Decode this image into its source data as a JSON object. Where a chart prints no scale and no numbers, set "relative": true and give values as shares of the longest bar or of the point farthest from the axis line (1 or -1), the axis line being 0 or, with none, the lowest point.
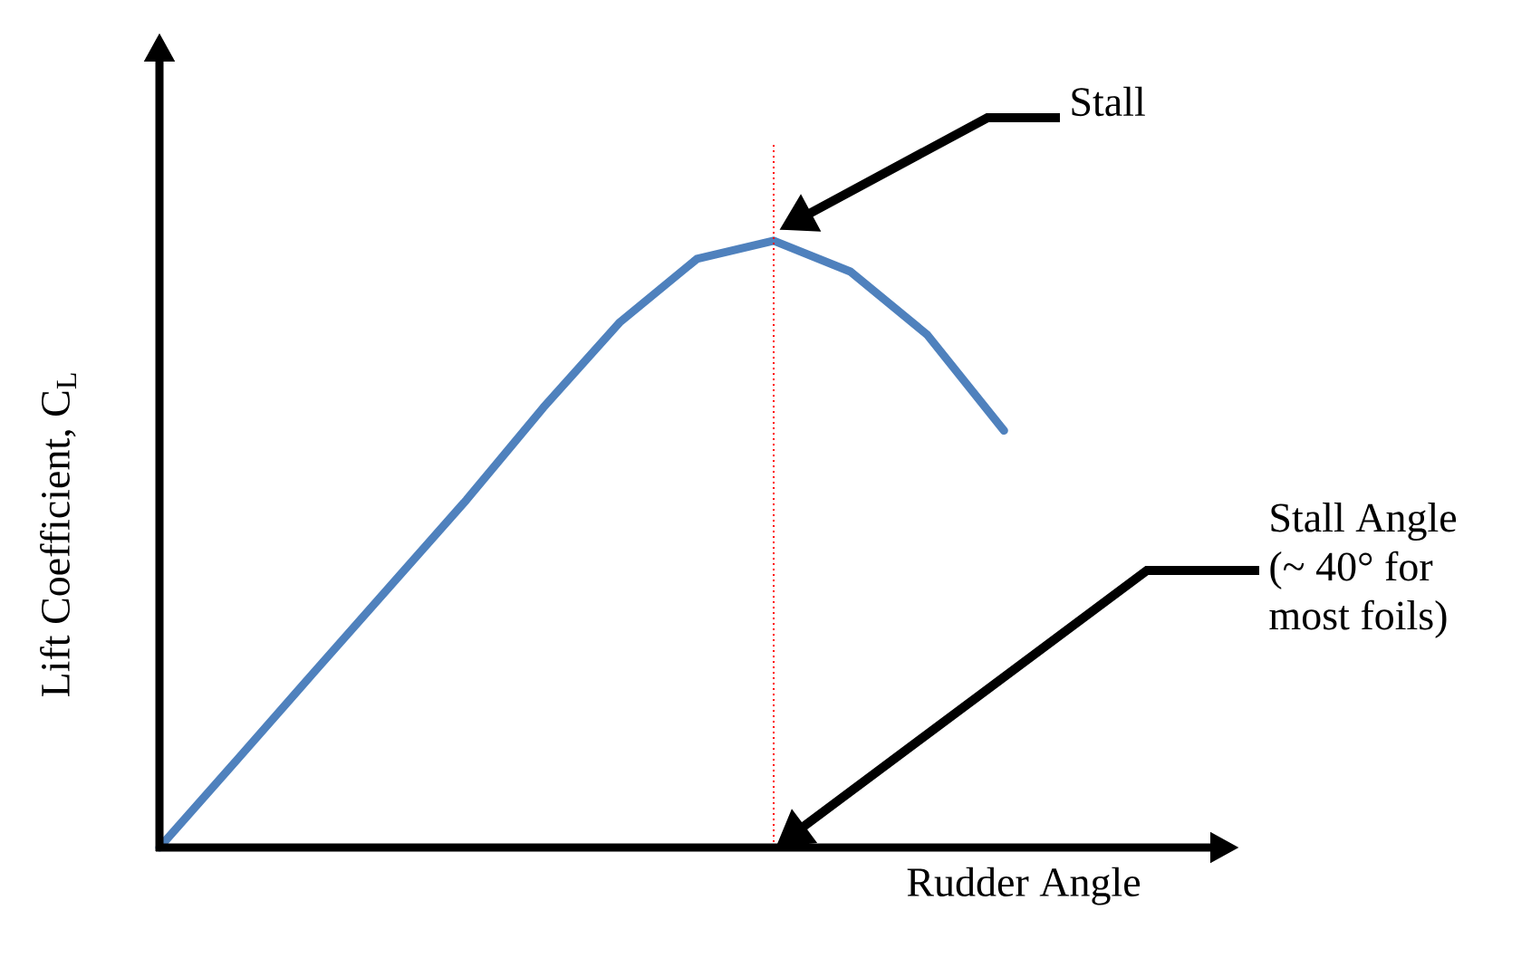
{
  "chart_data": {
    "type": "line",
    "xlabel": "Rudder Angle",
    "ylabel": "Lift Coefficient, C$_{L}$",
    "categories": [
      null,
      null,
      null,
      null,
      null,
      null,
      null,
      null,
      null,
      null,
      null,
      null
    ],
    "series": [
      {
        "color": "#4f81bd",
        "values": [
          0,
          0.143,
          0.287,
          0.43,
          0.573,
          0.725,
          0.866,
          0.97,
          1,
          0.949,
          0.845,
          0.687
        ]
      }
    ],
    "relative": true,
    "marker": "none",
    "line_style": "solid",
    "annotations": [
      "Stall",
      "Stall Angle (~ 40° for most foils)"
    ]
  }
}
